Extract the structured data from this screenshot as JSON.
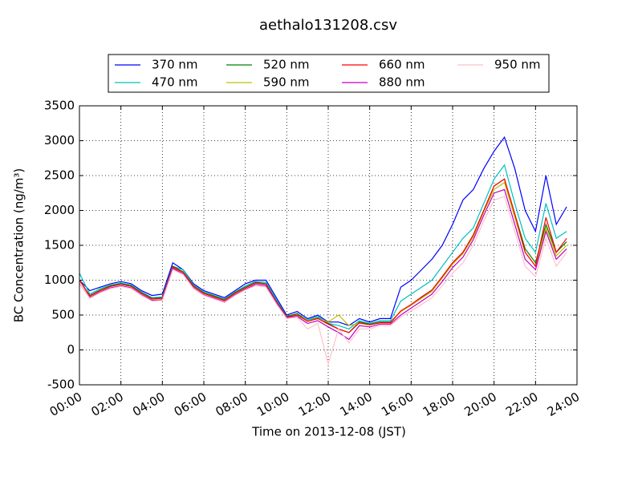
{
  "chart_data": {
    "type": "line",
    "title": "aethalo131208.csv",
    "xlabel": "Time on 2013-12-08 (JST)",
    "ylabel": "BC Concentration (ng/m³)",
    "x": [
      "00:00",
      "00:30",
      "01:00",
      "01:30",
      "02:00",
      "02:30",
      "03:00",
      "03:30",
      "04:00",
      "04:30",
      "05:00",
      "05:30",
      "06:00",
      "06:30",
      "07:00",
      "07:30",
      "08:00",
      "08:30",
      "09:00",
      "09:30",
      "10:00",
      "10:30",
      "11:00",
      "11:30",
      "12:00",
      "12:30",
      "13:00",
      "13:30",
      "14:00",
      "14:30",
      "15:00",
      "15:30",
      "16:00",
      "16:30",
      "17:00",
      "17:30",
      "18:00",
      "18:30",
      "19:00",
      "19:30",
      "20:00",
      "20:30",
      "21:00",
      "21:30",
      "22:00",
      "22:30",
      "23:00",
      "23:30"
    ],
    "xlim": [
      "00:00",
      "24:00"
    ],
    "xticks": [
      "00:00",
      "02:00",
      "04:00",
      "06:00",
      "08:00",
      "10:00",
      "12:00",
      "14:00",
      "16:00",
      "18:00",
      "20:00",
      "22:00",
      "24:00"
    ],
    "ylim": [
      -500,
      3500
    ],
    "yticks": [
      -500,
      0,
      500,
      1000,
      1500,
      2000,
      2500,
      3000,
      3500
    ],
    "grid": true,
    "legend": "top",
    "series": [
      {
        "name": "370 nm",
        "color": "#0000ff",
        "values": [
          1000,
          850,
          900,
          950,
          980,
          950,
          850,
          780,
          800,
          1250,
          1150,
          950,
          850,
          800,
          750,
          850,
          950,
          1000,
          1000,
          750,
          500,
          550,
          450,
          500,
          400,
          400,
          350,
          450,
          400,
          450,
          450,
          900,
          1000,
          1150,
          1300,
          1500,
          1800,
          2150,
          2300,
          2600,
          2850,
          3050,
          2600,
          2000,
          1700,
          2500,
          1800,
          2050
        ]
      },
      {
        "name": "470 nm",
        "color": "#00bfbf",
        "values": [
          1100,
          800,
          880,
          930,
          960,
          930,
          830,
          750,
          760,
          1200,
          1150,
          930,
          830,
          780,
          730,
          830,
          920,
          980,
          970,
          720,
          480,
          520,
          430,
          480,
          380,
          350,
          300,
          420,
          380,
          420,
          420,
          700,
          800,
          900,
          1000,
          1200,
          1400,
          1600,
          1750,
          2100,
          2450,
          2650,
          2100,
          1600,
          1400,
          2100,
          1600,
          1700
        ]
      },
      {
        "name": "520 nm",
        "color": "#008000",
        "values": [
          1000,
          780,
          860,
          920,
          950,
          920,
          820,
          740,
          750,
          1200,
          1120,
          920,
          820,
          770,
          720,
          820,
          900,
          970,
          950,
          700,
          480,
          520,
          420,
          460,
          380,
          300,
          250,
          400,
          370,
          400,
          400,
          550,
          650,
          750,
          850,
          1050,
          1250,
          1400,
          1650,
          2000,
          2350,
          2450,
          1950,
          1450,
          1250,
          1800,
          1400,
          1550
        ]
      },
      {
        "name": "590 nm",
        "color": "#bfbf00",
        "values": [
          1000,
          770,
          850,
          910,
          940,
          910,
          810,
          730,
          740,
          1180,
          1110,
          910,
          810,
          760,
          710,
          810,
          890,
          960,
          940,
          690,
          470,
          500,
          420,
          450,
          400,
          500,
          350,
          380,
          360,
          390,
          390,
          550,
          640,
          740,
          840,
          1030,
          1230,
          1380,
          1620,
          1980,
          2300,
          2400,
          1900,
          1400,
          1200,
          1750,
          1350,
          1500
        ]
      },
      {
        "name": "660 nm",
        "color": "#ff0000",
        "values": [
          1000,
          770,
          850,
          910,
          940,
          910,
          810,
          730,
          740,
          1190,
          1110,
          910,
          810,
          760,
          710,
          810,
          890,
          960,
          940,
          690,
          470,
          500,
          410,
          450,
          370,
          300,
          250,
          390,
          360,
          390,
          390,
          560,
          650,
          760,
          860,
          1050,
          1250,
          1400,
          1650,
          2000,
          2350,
          2450,
          1950,
          1400,
          1200,
          1900,
          1400,
          1600
        ]
      },
      {
        "name": "880 nm",
        "color": "#bf00bf",
        "values": [
          950,
          750,
          830,
          890,
          920,
          890,
          790,
          710,
          720,
          1170,
          1090,
          890,
          790,
          740,
          690,
          790,
          870,
          940,
          920,
          680,
          460,
          480,
          380,
          420,
          330,
          250,
          150,
          350,
          330,
          370,
          370,
          500,
          600,
          700,
          800,
          980,
          1180,
          1330,
          1580,
          1930,
          2250,
          2300,
          1800,
          1300,
          1150,
          1700,
          1300,
          1450
        ]
      },
      {
        "name": "950 nm",
        "color": "#ffc0cb",
        "values": [
          950,
          740,
          820,
          880,
          910,
          880,
          780,
          700,
          710,
          1150,
          1080,
          880,
          780,
          730,
          680,
          780,
          860,
          920,
          900,
          660,
          450,
          470,
          300,
          380,
          -200,
          300,
          100,
          300,
          300,
          350,
          350,
          470,
          560,
          650,
          750,
          920,
          1100,
          1250,
          1500,
          1850,
          2150,
          2200,
          1700,
          1200,
          1050,
          1600,
          1200,
          1400
        ]
      }
    ]
  }
}
